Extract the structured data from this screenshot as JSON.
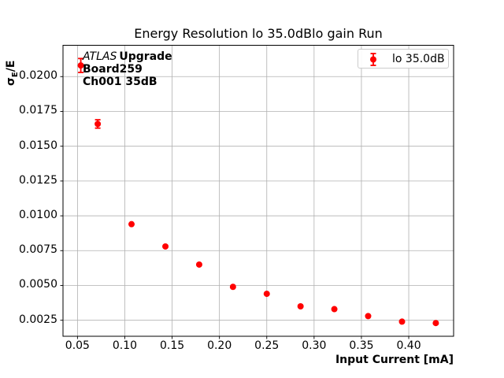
{
  "figure": {
    "title": "Energy Resolution lo 35.0dBlo gain Run",
    "xlabel": "Input Current [mA]",
    "ylabel_sigma": "σ",
    "ylabel_sub": "E",
    "ylabel_rest": "/E",
    "annotation": {
      "experiment": "ATLAS",
      "tag": "Upgrade",
      "board": "Board259",
      "channel": "Ch001 35dB"
    },
    "legend_label": "lo 35.0dB"
  },
  "chart_data": {
    "type": "scatter",
    "title": "Energy Resolution lo 35.0dBlo gain Run",
    "xlabel": "Input Current [mA]",
    "ylabel": "σ_E/E",
    "legend": [
      "lo 35.0dB"
    ],
    "legend_position": "upper right",
    "grid": true,
    "grid_color": "#b0b0b0",
    "axis_color": "#000000",
    "xlim": [
      0.0347,
      0.4474
    ],
    "ylim": [
      0.00135,
      0.02225
    ],
    "xticks": [
      0.05,
      0.1,
      0.15,
      0.2,
      0.25,
      0.3,
      0.35,
      0.4
    ],
    "xtick_labels": [
      "0.05",
      "0.10",
      "0.15",
      "0.20",
      "0.25",
      "0.30",
      "0.35",
      "0.40"
    ],
    "yticks": [
      0.0025,
      0.005,
      0.0075,
      0.01,
      0.0125,
      0.015,
      0.0175,
      0.02
    ],
    "ytick_labels": [
      "0.0025",
      "0.0050",
      "0.0075",
      "0.0100",
      "0.0125",
      "0.0150",
      "0.0175",
      "0.0200"
    ],
    "series": [
      {
        "name": "lo 35.0dB",
        "color": "#ff0000",
        "marker": "circle-with-errorbar",
        "x": [
          0.0535,
          0.0714,
          0.1071,
          0.1429,
          0.1786,
          0.2143,
          0.25,
          0.2857,
          0.3214,
          0.3571,
          0.3929,
          0.4286
        ],
        "y": [
          0.0208,
          0.0166,
          0.0094,
          0.0078,
          0.0065,
          0.0049,
          0.0044,
          0.0035,
          0.0033,
          0.0028,
          0.0024,
          0.0023
        ],
        "yerr": [
          0.0005,
          0.0003,
          0,
          0,
          0,
          0,
          0,
          0,
          0,
          0,
          0,
          0
        ]
      }
    ]
  }
}
